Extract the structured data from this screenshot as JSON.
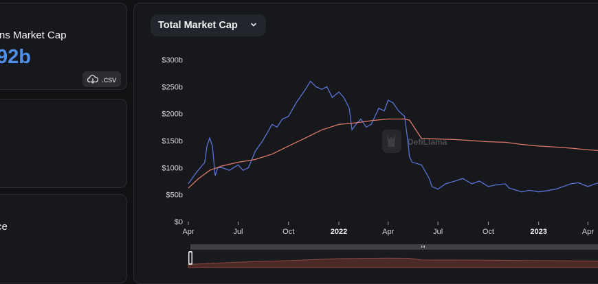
{
  "stats": {
    "market_cap_label": "ns Market Cap",
    "market_cap_value": "92b",
    "csv_label": ".csv",
    "card3_label": "ce"
  },
  "selector": {
    "label": "Total Market Cap"
  },
  "watermark": "DefiLlama",
  "colors": {
    "mcap": "#5b73d6",
    "prev": "#e07a6c",
    "accent": "#4f8fea"
  },
  "chart_data": {
    "type": "line",
    "xlabel": "",
    "ylabel": "",
    "ylim": [
      0,
      300
    ],
    "y_ticks": [
      "$0",
      "$50b",
      "$100b",
      "$150b",
      "$200b",
      "$250b",
      "$300b"
    ],
    "x_ticks": [
      "Apr",
      "Jul",
      "Oct",
      "2022",
      "Apr",
      "Jul",
      "Oct",
      "2023",
      "Apr"
    ],
    "grid": false,
    "series": [
      {
        "x": [
          "2021-04-01",
          "2021-04-15",
          "2021-05-01",
          "2021-05-05",
          "2021-05-10",
          "2021-05-15",
          "2021-05-20",
          "2021-05-25",
          "2021-06-01",
          "2021-06-15",
          "2021-07-01",
          "2021-07-10",
          "2021-07-20",
          "2021-08-01",
          "2021-08-15",
          "2021-09-01",
          "2021-09-10",
          "2021-09-20",
          "2021-10-01",
          "2021-10-15",
          "2021-11-01",
          "2021-11-10",
          "2021-11-20",
          "2021-12-01",
          "2021-12-10",
          "2021-12-20",
          "2022-01-01",
          "2022-01-10",
          "2022-01-20",
          "2022-01-25",
          "2022-02-01",
          "2022-02-10",
          "2022-02-20",
          "2022-03-01",
          "2022-03-15",
          "2022-03-25",
          "2022-04-01",
          "2022-04-10",
          "2022-04-20",
          "2022-05-01",
          "2022-05-07",
          "2022-05-10",
          "2022-05-15",
          "2022-06-01",
          "2022-06-15",
          "2022-06-20",
          "2022-07-01",
          "2022-07-15",
          "2022-08-01",
          "2022-08-15",
          "2022-09-01",
          "2022-09-15",
          "2022-10-01",
          "2022-10-15",
          "2022-11-01",
          "2022-11-08",
          "2022-11-15",
          "2022-12-01",
          "2022-12-15",
          "2023-01-01",
          "2023-01-15",
          "2023-02-01",
          "2023-02-15",
          "2023-03-01",
          "2023-03-15",
          "2023-04-01",
          "2023-04-15",
          "2023-04-30"
        ],
        "values": [
          70,
          90,
          110,
          140,
          155,
          140,
          85,
          100,
          100,
          95,
          105,
          95,
          100,
          130,
          150,
          180,
          175,
          190,
          195,
          220,
          245,
          260,
          250,
          245,
          250,
          230,
          240,
          230,
          210,
          170,
          180,
          190,
          175,
          180,
          210,
          205,
          225,
          220,
          205,
          195,
          150,
          120,
          110,
          105,
          80,
          65,
          60,
          70,
          75,
          80,
          70,
          75,
          65,
          68,
          70,
          62,
          60,
          55,
          58,
          55,
          57,
          60,
          65,
          70,
          72,
          65,
          70,
          75
        ]
      },
      {
        "x": [
          "2021-04-01",
          "2021-04-20",
          "2021-05-10",
          "2021-06-01",
          "2021-07-01",
          "2021-08-01",
          "2021-09-01",
          "2021-10-01",
          "2021-11-01",
          "2021-12-01",
          "2022-01-01",
          "2022-02-01",
          "2022-03-01",
          "2022-04-01",
          "2022-05-01",
          "2022-05-10",
          "2022-06-01",
          "2022-07-01",
          "2022-08-01",
          "2022-09-01",
          "2022-10-01",
          "2022-11-01",
          "2022-12-01",
          "2023-01-01",
          "2023-02-01",
          "2023-03-01",
          "2023-04-01",
          "2023-04-30"
        ],
        "values": [
          62,
          80,
          95,
          103,
          110,
          115,
          125,
          140,
          155,
          170,
          180,
          183,
          187,
          190,
          190,
          188,
          154,
          153,
          152,
          150,
          148,
          147,
          143,
          140,
          138,
          136,
          133,
          131
        ]
      }
    ]
  },
  "brush": {
    "x": [
      "2021-04-01",
      "2021-07-01",
      "2021-10-01",
      "2022-01-01",
      "2022-04-01",
      "2022-05-10",
      "2022-06-01",
      "2022-10-01",
      "2023-01-01",
      "2023-04-30"
    ],
    "values": [
      62,
      110,
      140,
      180,
      190,
      188,
      154,
      148,
      140,
      131
    ]
  }
}
